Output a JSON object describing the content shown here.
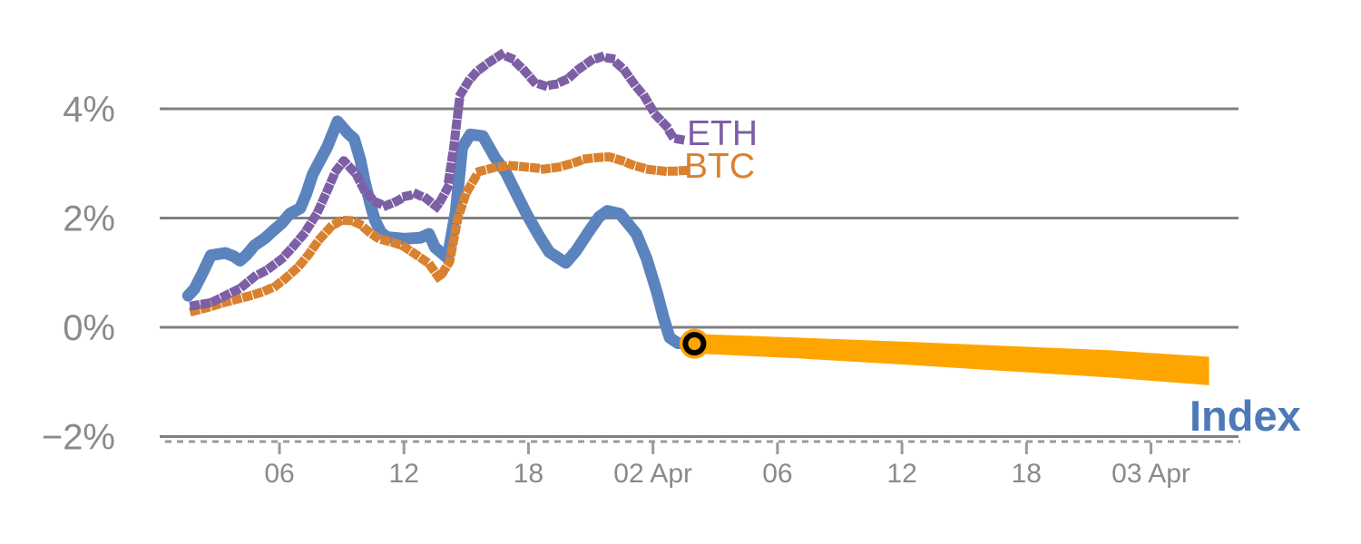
{
  "chart_data": {
    "type": "line",
    "title": "",
    "x_axis": {
      "unit": "hours since Apr 1 00:00",
      "range": [
        0,
        52.5
      ],
      "ticks": [
        {
          "t": 6,
          "label": "06"
        },
        {
          "t": 12,
          "label": "12"
        },
        {
          "t": 18,
          "label": "18"
        },
        {
          "t": 24,
          "label": "02 Apr"
        },
        {
          "t": 30,
          "label": "06"
        },
        {
          "t": 36,
          "label": "12"
        },
        {
          "t": 42,
          "label": "18"
        },
        {
          "t": 48,
          "label": "03 Apr"
        }
      ]
    },
    "y_axis": {
      "unit": "percent return",
      "range": [
        -2.1,
        5.7
      ],
      "ticks": [
        {
          "v": 4,
          "label": "4%"
        },
        {
          "v": 2,
          "label": "2%"
        },
        {
          "v": 0,
          "label": "0%"
        },
        {
          "v": -2,
          "label": "−2%"
        }
      ]
    },
    "colors": {
      "grid": "#808080",
      "axis": "#9a9a9a",
      "tick_text": "#8a8a8a",
      "eth": "#7d5fa5",
      "btc": "#d9812e",
      "index": "#5b84be",
      "index_label": "#4d79b7",
      "forecast_band": "#ffa500",
      "marker_ring": "#000000"
    },
    "series": [
      {
        "name": "ETH",
        "style": "dotted",
        "color": "#7d5fa5",
        "points": [
          [
            1.9,
            0.4
          ],
          [
            2.7,
            0.45
          ],
          [
            3.5,
            0.6
          ],
          [
            4.1,
            0.71
          ],
          [
            4.8,
            0.93
          ],
          [
            5.4,
            1.05
          ],
          [
            6.1,
            1.25
          ],
          [
            6.6,
            1.45
          ],
          [
            7.2,
            1.72
          ],
          [
            7.8,
            2.08
          ],
          [
            8.3,
            2.5
          ],
          [
            8.7,
            2.85
          ],
          [
            9.1,
            3.05
          ],
          [
            9.7,
            2.8
          ],
          [
            10.1,
            2.5
          ],
          [
            10.6,
            2.3
          ],
          [
            11.1,
            2.22
          ],
          [
            11.6,
            2.3
          ],
          [
            12.1,
            2.4
          ],
          [
            12.6,
            2.44
          ],
          [
            13.1,
            2.35
          ],
          [
            13.6,
            2.2
          ],
          [
            14.1,
            2.55
          ],
          [
            14.4,
            3.3
          ],
          [
            14.7,
            4.25
          ],
          [
            15.1,
            4.5
          ],
          [
            15.5,
            4.68
          ],
          [
            16.1,
            4.85
          ],
          [
            16.7,
            5.0
          ],
          [
            17.2,
            4.92
          ],
          [
            17.8,
            4.7
          ],
          [
            18.3,
            4.48
          ],
          [
            18.8,
            4.42
          ],
          [
            19.3,
            4.45
          ],
          [
            19.9,
            4.55
          ],
          [
            20.4,
            4.72
          ],
          [
            21.0,
            4.88
          ],
          [
            21.5,
            4.95
          ],
          [
            22.0,
            4.92
          ],
          [
            22.6,
            4.72
          ],
          [
            23.1,
            4.45
          ],
          [
            23.6,
            4.22
          ],
          [
            24.1,
            3.9
          ],
          [
            24.6,
            3.7
          ],
          [
            25.0,
            3.46
          ],
          [
            25.6,
            3.42
          ]
        ]
      },
      {
        "name": "BTC",
        "style": "dotted",
        "color": "#d9812e",
        "points": [
          [
            1.9,
            0.3
          ],
          [
            2.7,
            0.38
          ],
          [
            3.3,
            0.45
          ],
          [
            4.0,
            0.52
          ],
          [
            4.6,
            0.58
          ],
          [
            5.2,
            0.65
          ],
          [
            5.8,
            0.75
          ],
          [
            6.3,
            0.9
          ],
          [
            6.9,
            1.1
          ],
          [
            7.4,
            1.33
          ],
          [
            7.9,
            1.6
          ],
          [
            8.5,
            1.85
          ],
          [
            9.0,
            1.96
          ],
          [
            9.5,
            1.95
          ],
          [
            9.9,
            1.88
          ],
          [
            10.4,
            1.72
          ],
          [
            10.8,
            1.62
          ],
          [
            11.3,
            1.57
          ],
          [
            11.9,
            1.5
          ],
          [
            12.3,
            1.4
          ],
          [
            12.7,
            1.3
          ],
          [
            13.2,
            1.17
          ],
          [
            13.7,
            0.9
          ],
          [
            14.2,
            1.2
          ],
          [
            14.6,
            2.0
          ],
          [
            15.0,
            2.46
          ],
          [
            15.6,
            2.85
          ],
          [
            16.4,
            2.93
          ],
          [
            17.2,
            2.96
          ],
          [
            18.0,
            2.93
          ],
          [
            18.8,
            2.9
          ],
          [
            19.4,
            2.93
          ],
          [
            20.1,
            3.0
          ],
          [
            20.7,
            3.08
          ],
          [
            21.4,
            3.11
          ],
          [
            21.9,
            3.12
          ],
          [
            22.5,
            3.05
          ],
          [
            23.1,
            2.96
          ],
          [
            23.8,
            2.89
          ],
          [
            24.5,
            2.86
          ],
          [
            25.0,
            2.86
          ],
          [
            25.5,
            2.87
          ]
        ]
      },
      {
        "name": "Index",
        "style": "solid",
        "color": "#5b84be",
        "points": [
          [
            1.6,
            0.58
          ],
          [
            1.9,
            0.7
          ],
          [
            2.3,
            1.0
          ],
          [
            2.7,
            1.32
          ],
          [
            3.4,
            1.36
          ],
          [
            3.8,
            1.3
          ],
          [
            4.1,
            1.22
          ],
          [
            4.4,
            1.32
          ],
          [
            4.8,
            1.5
          ],
          [
            5.3,
            1.63
          ],
          [
            5.7,
            1.77
          ],
          [
            6.1,
            1.9
          ],
          [
            6.5,
            2.08
          ],
          [
            7.0,
            2.18
          ],
          [
            7.3,
            2.45
          ],
          [
            7.6,
            2.8
          ],
          [
            8.3,
            3.3
          ],
          [
            8.8,
            3.77
          ],
          [
            9.3,
            3.55
          ],
          [
            9.6,
            3.45
          ],
          [
            9.9,
            3.06
          ],
          [
            10.1,
            2.68
          ],
          [
            10.4,
            2.23
          ],
          [
            10.6,
            1.96
          ],
          [
            10.9,
            1.73
          ],
          [
            11.2,
            1.65
          ],
          [
            12.0,
            1.62
          ],
          [
            12.8,
            1.64
          ],
          [
            13.2,
            1.71
          ],
          [
            13.5,
            1.46
          ],
          [
            14.1,
            1.27
          ],
          [
            14.5,
            2.13
          ],
          [
            14.8,
            3.29
          ],
          [
            15.2,
            3.53
          ],
          [
            15.8,
            3.5
          ],
          [
            16.4,
            3.1
          ],
          [
            16.9,
            2.84
          ],
          [
            17.4,
            2.46
          ],
          [
            17.9,
            2.08
          ],
          [
            18.5,
            1.68
          ],
          [
            19.0,
            1.38
          ],
          [
            19.8,
            1.18
          ],
          [
            20.3,
            1.4
          ],
          [
            20.9,
            1.75
          ],
          [
            21.4,
            2.02
          ],
          [
            21.8,
            2.13
          ],
          [
            22.4,
            2.08
          ],
          [
            22.9,
            1.85
          ],
          [
            23.2,
            1.71
          ],
          [
            23.7,
            1.25
          ],
          [
            24.2,
            0.63
          ],
          [
            24.5,
            0.19
          ],
          [
            24.8,
            -0.19
          ],
          [
            25.2,
            -0.29
          ],
          [
            26.0,
            -0.3
          ]
        ]
      }
    ],
    "forecast": {
      "name": "Index forecast band",
      "color": "#ffa500",
      "points_t_center_halfwidth": [
        [
          26.0,
          -0.3,
          0.18
        ],
        [
          31.0,
          -0.38,
          0.19
        ],
        [
          36.0,
          -0.47,
          0.21
        ],
        [
          41.0,
          -0.57,
          0.23
        ],
        [
          46.0,
          -0.67,
          0.25
        ],
        [
          50.8,
          -0.8,
          0.26
        ]
      ]
    },
    "marker": {
      "t": 26.0,
      "v": -0.3,
      "fill": "#ffa500",
      "ring": "#000000"
    }
  }
}
